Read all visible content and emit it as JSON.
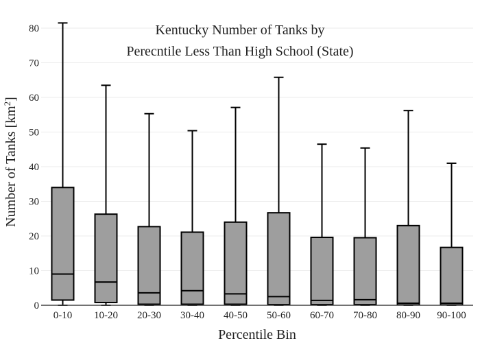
{
  "chart_data": {
    "type": "box",
    "title_lines": [
      "Kentucky Number of Tanks by",
      "Perecntile Less Than High School (State)"
    ],
    "xlabel": "Percentile Bin",
    "ylabel_main": "Number of Tanks  [km",
    "ylabel_sup": "2",
    "ylabel_end": "]",
    "ylim": [
      0,
      82
    ],
    "yticks": [
      0,
      10,
      20,
      30,
      40,
      50,
      60,
      70,
      80
    ],
    "grid": true,
    "categories": [
      "0-10",
      "10-20",
      "20-30",
      "30-40",
      "40-50",
      "50-60",
      "60-70",
      "70-80",
      "80-90",
      "90-100"
    ],
    "boxes": [
      {
        "min": 0,
        "q1": 1.5,
        "median": 9.0,
        "q3": 34.0,
        "max": 81.5
      },
      {
        "min": 0,
        "q1": 0.8,
        "median": 6.7,
        "q3": 26.3,
        "max": 63.5
      },
      {
        "min": 0,
        "q1": 0.3,
        "median": 3.6,
        "q3": 22.7,
        "max": 55.3
      },
      {
        "min": 0,
        "q1": 0.3,
        "median": 4.2,
        "q3": 21.1,
        "max": 50.4
      },
      {
        "min": 0,
        "q1": 0.3,
        "median": 3.3,
        "q3": 24.0,
        "max": 57.1
      },
      {
        "min": 0,
        "q1": 0.2,
        "median": 2.5,
        "q3": 26.7,
        "max": 65.8
      },
      {
        "min": 0,
        "q1": 0.2,
        "median": 1.4,
        "q3": 19.6,
        "max": 46.5
      },
      {
        "min": 0,
        "q1": 0.2,
        "median": 1.6,
        "q3": 19.5,
        "max": 45.4
      },
      {
        "min": 0,
        "q1": 0.1,
        "median": 0.6,
        "q3": 23.0,
        "max": 56.2
      },
      {
        "min": 0,
        "q1": 0.1,
        "median": 0.6,
        "q3": 16.7,
        "max": 41.0
      }
    ]
  }
}
